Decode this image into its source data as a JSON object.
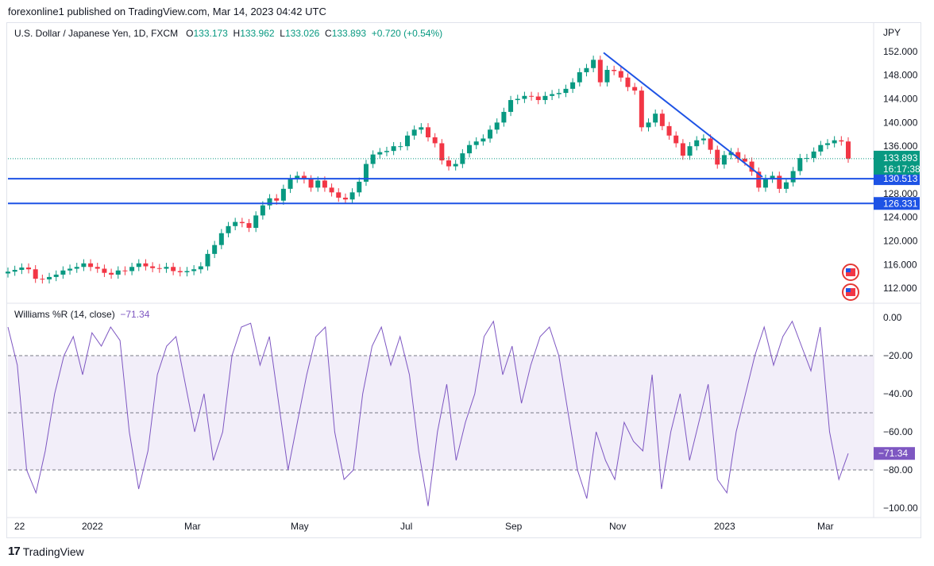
{
  "header": {
    "publisher": "forexonline1 published on TradingView.com, Mar 14, 2023 04:42 UTC"
  },
  "legend": {
    "symbol": "U.S. Dollar / Japanese Yen, 1D, FXCM",
    "o_label": "O",
    "o": "133.173",
    "h_label": "H",
    "h": "133.962",
    "l_label": "L",
    "l": "133.026",
    "c_label": "C",
    "c": "133.893",
    "change": "+0.720 (+0.54%)"
  },
  "indicator": {
    "name": "Williams %R (14, close)",
    "value": "−71.34"
  },
  "brand": {
    "logo": "17",
    "name": "TradingView"
  },
  "colors": {
    "up": "#089981",
    "down": "#f23645",
    "line": "#1e53e5",
    "wr": "#7e57c2",
    "wr_band": "#ede7f6",
    "last": "#089981"
  },
  "chart_data": [
    {
      "type": "candlestick",
      "title": "U.S. Dollar / Japanese Yen, 1D, FXCM",
      "currency": "JPY",
      "y_ticks": [
        "152.000",
        "148.000",
        "144.000",
        "140.000",
        "136.000",
        "132.000",
        "128.000",
        "124.000",
        "120.000",
        "116.000",
        "112.000"
      ],
      "ylim": [
        110,
        154
      ],
      "x_ticks": [
        "22",
        "2022",
        "Mar",
        "May",
        "Jul",
        "Sep",
        "Nov",
        "2023",
        "Mar"
      ],
      "series_closes": [
        114.8,
        115.1,
        115.5,
        115.2,
        113.6,
        113.5,
        113.9,
        114.3,
        115.0,
        115.3,
        115.6,
        116.2,
        115.6,
        115.3,
        114.6,
        114.3,
        115.0,
        114.9,
        115.6,
        116.2,
        115.7,
        115.4,
        115.3,
        115.6,
        114.9,
        114.7,
        114.9,
        115.2,
        115.7,
        117.8,
        119.3,
        121.3,
        122.5,
        123.2,
        123.0,
        122.2,
        124.3,
        126.0,
        127.2,
        126.8,
        128.8,
        130.5,
        131.0,
        130.4,
        129.0,
        130.2,
        129.0,
        128.2,
        127.3,
        127.0,
        128.2,
        130.0,
        133.0,
        134.6,
        135.0,
        135.2,
        136.0,
        136.0,
        137.8,
        138.8,
        139.2,
        137.5,
        136.5,
        133.6,
        132.6,
        133.0,
        134.8,
        136.2,
        136.8,
        137.3,
        138.8,
        140.0,
        141.8,
        143.8,
        144.0,
        144.5,
        144.4,
        143.8,
        144.5,
        144.8,
        145.0,
        145.7,
        146.8,
        148.5,
        149.2,
        150.6,
        146.8,
        148.9,
        148.7,
        147.6,
        146.0,
        145.4,
        139.2,
        140.0,
        141.5,
        139.4,
        137.8,
        136.5,
        134.4,
        136.0,
        137.0,
        137.3,
        135.4,
        132.9,
        134.5,
        135.0,
        133.9,
        133.4,
        131.7,
        129.0,
        130.5,
        131.0,
        128.8,
        129.9,
        131.8,
        134.0,
        134.0,
        135.1,
        136.2,
        136.5,
        137.0,
        136.8,
        133.9
      ],
      "trendline": {
        "from": {
          "date": "Oct 2022",
          "price": 151.8
        },
        "to": {
          "date": "Jan 2023",
          "price": 130.8
        }
      },
      "horizontal_levels": [
        {
          "price": "130.513",
          "color": "#1e53e5"
        },
        {
          "price": "126.331",
          "color": "#1e53e5"
        }
      ],
      "last_price": {
        "price": "133.893",
        "countdown": "16:17:38"
      }
    },
    {
      "type": "line",
      "title": "Williams %R (14, close)",
      "y_ticks": [
        "0.00",
        "−20.00",
        "−40.00",
        "−60.00",
        "−80.00",
        "−100.00"
      ],
      "ylim": [
        -100,
        0
      ],
      "bands": [
        -20,
        -50,
        -80
      ],
      "values": [
        -5,
        -25,
        -80,
        -92,
        -70,
        -40,
        -20,
        -10,
        -30,
        -8,
        -15,
        -5,
        -12,
        -60,
        -90,
        -70,
        -30,
        -15,
        -10,
        -35,
        -60,
        -40,
        -75,
        -60,
        -20,
        -5,
        -3,
        -25,
        -10,
        -45,
        -80,
        -55,
        -30,
        -10,
        -5,
        -60,
        -85,
        -80,
        -40,
        -15,
        -5,
        -25,
        -10,
        -30,
        -70,
        -99,
        -60,
        -35,
        -75,
        -55,
        -40,
        -10,
        -2,
        -30,
        -15,
        -45,
        -25,
        -10,
        -5,
        -20,
        -50,
        -80,
        -95,
        -60,
        -75,
        -85,
        -55,
        -65,
        -70,
        -30,
        -90,
        -60,
        -40,
        -75,
        -55,
        -35,
        -85,
        -92,
        -60,
        -40,
        -20,
        -5,
        -25,
        -10,
        -2,
        -15,
        -28,
        -5,
        -60,
        -85,
        -71.34
      ],
      "last_value": "−71.34"
    }
  ]
}
